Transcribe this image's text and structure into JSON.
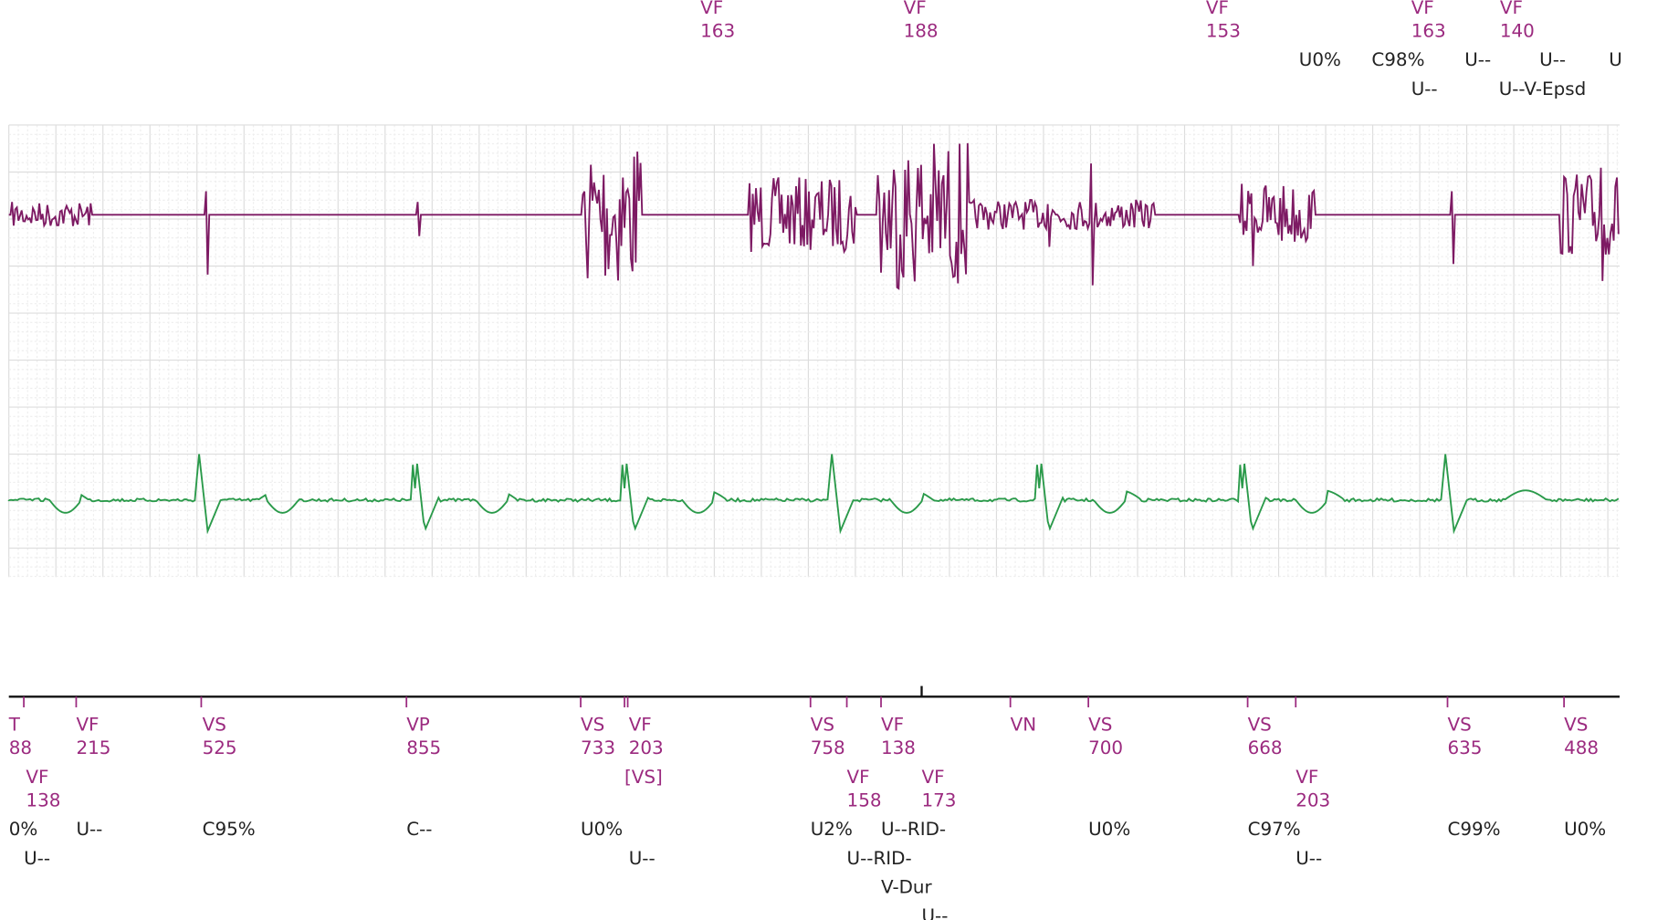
{
  "top_markers": [
    {
      "label": "VF",
      "interval": 163
    },
    {
      "label": "VF",
      "interval": 188
    },
    {
      "label": "VF",
      "interval": 153
    },
    {
      "label": "VF",
      "interval": 163
    },
    {
      "label": "VF",
      "interval": 140
    }
  ],
  "top_notes": [
    "U0%",
    "C98%",
    "U--",
    "U--",
    "U",
    "U--",
    "U--V-Epsd"
  ],
  "bottom_markers": [
    {
      "label": "T",
      "interval": 88
    },
    {
      "label": "VF",
      "interval": 138
    },
    {
      "label": "VF",
      "interval": 215
    },
    {
      "label": "VS",
      "interval": 525
    },
    {
      "label": "VP",
      "interval": 855
    },
    {
      "label": "VS",
      "interval": 733
    },
    {
      "label": "VF",
      "interval": 203
    },
    {
      "label": "VS",
      "interval": 758
    },
    {
      "label": "VF",
      "interval": 138
    },
    {
      "label": "VF",
      "interval": 158
    },
    {
      "label": "VF",
      "interval": 173
    },
    {
      "label": "VN"
    },
    {
      "label": "VS",
      "interval": 700
    },
    {
      "label": "VS",
      "interval": 668
    },
    {
      "label": "VF",
      "interval": 203
    },
    {
      "label": "VS",
      "interval": 635
    },
    {
      "label": "VS",
      "interval": 488
    }
  ],
  "bottom_tag": "[VS]",
  "bottom_notes": [
    "0%",
    "U--",
    "C95%",
    "C--",
    "U0%",
    "U2%",
    "U--RID-",
    "U0%",
    "C97%",
    "C99%",
    "U0%",
    "U--",
    "U--",
    "U--RID-",
    "U--",
    "V-Dur",
    "U--"
  ]
}
